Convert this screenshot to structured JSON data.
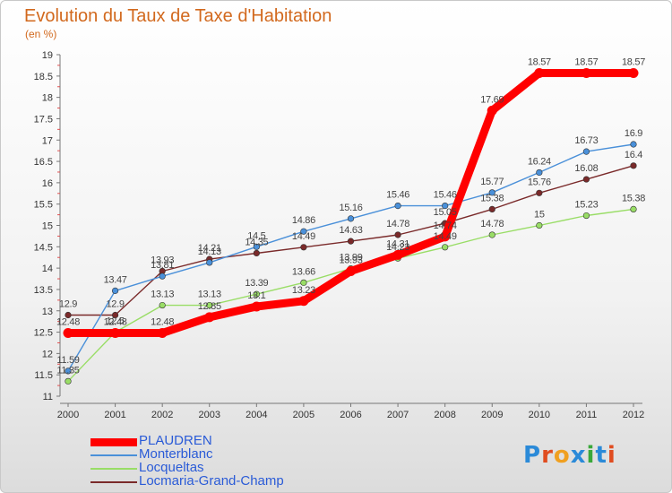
{
  "title": "Evolution du Taux de Taxe d'Habitation",
  "subtitle": "(en %)",
  "logo": {
    "letters": [
      "P",
      "r",
      "o",
      "x",
      "i",
      "t",
      "i"
    ],
    "colors": [
      "#2b8ad8",
      "#e04c1f",
      "#f0a020",
      "#2b8ad8",
      "#3aa83a",
      "#2b8ad8",
      "#e04c1f"
    ]
  },
  "chart_data": {
    "type": "line",
    "x": [
      2000,
      2001,
      2002,
      2003,
      2004,
      2005,
      2006,
      2007,
      2008,
      2009,
      2010,
      2011,
      2012
    ],
    "x_tick_labels": [
      "2000",
      "2001",
      "2002",
      "2003",
      "2004",
      "2005",
      "2006",
      "2007",
      "2008",
      "2009",
      "2010",
      "2011",
      "2012"
    ],
    "ylim": [
      11,
      19
    ],
    "y_tick_labels": [
      "11",
      "11.5",
      "12",
      "12.5",
      "13",
      "13.5",
      "14",
      "14.5",
      "15",
      "15.5",
      "16",
      "16.5",
      "17",
      "17.5",
      "18",
      "18.5",
      "19"
    ],
    "grid": false,
    "legend_position": "bottom-left",
    "series": [
      {
        "name": "PLAUDREN",
        "color": "#ff0000",
        "values": [
          12.48,
          12.48,
          12.48,
          12.85,
          13.1,
          13.23,
          13.93,
          14.31,
          14.74,
          17.69,
          18.57,
          18.57,
          18.57
        ],
        "labels": [
          "12.48",
          "12.48",
          "12.48",
          "12.85",
          "13.1",
          "13.23",
          "13.93",
          "14.31",
          "14.74",
          "17.69",
          "18.57",
          "18.57",
          "18.57"
        ]
      },
      {
        "name": "Monterblanc",
        "color": "#4a90d9",
        "values": [
          11.59,
          13.47,
          13.81,
          14.13,
          14.5,
          14.86,
          15.16,
          15.46,
          15.46,
          15.77,
          16.24,
          16.73,
          16.9
        ],
        "labels": [
          "11.59",
          "13.47",
          "13.81",
          "14.13",
          "14.5",
          "14.86",
          "15.16",
          "15.46",
          "15.46",
          "15.77",
          "16.24",
          "16.73",
          "16.9"
        ]
      },
      {
        "name": "Locqueltas",
        "color": "#99dd66",
        "values": [
          11.35,
          12.5,
          13.13,
          13.13,
          13.39,
          13.66,
          13.99,
          14.23,
          14.49,
          14.78,
          15,
          15.23,
          15.38
        ],
        "labels": [
          "11.35",
          "12.5",
          "13.13",
          "13.13",
          "13.39",
          "13.66",
          "13.99",
          "14.23",
          "14.49",
          "14.78",
          "15",
          "15.23",
          "15.38"
        ]
      },
      {
        "name": "Locmaria-Grand-Champ",
        "color": "#7a2a2a",
        "values": [
          12.9,
          12.9,
          13.93,
          14.21,
          14.35,
          14.49,
          14.63,
          14.78,
          15.05,
          15.38,
          15.76,
          16.08,
          16.4
        ],
        "labels": [
          "12.9",
          "12.9",
          "13.93",
          "14.21",
          "14.35",
          "14.49",
          "14.63",
          "14.78",
          "15.05",
          "15.38",
          "15.76",
          "16.08",
          "16.4"
        ]
      }
    ]
  }
}
